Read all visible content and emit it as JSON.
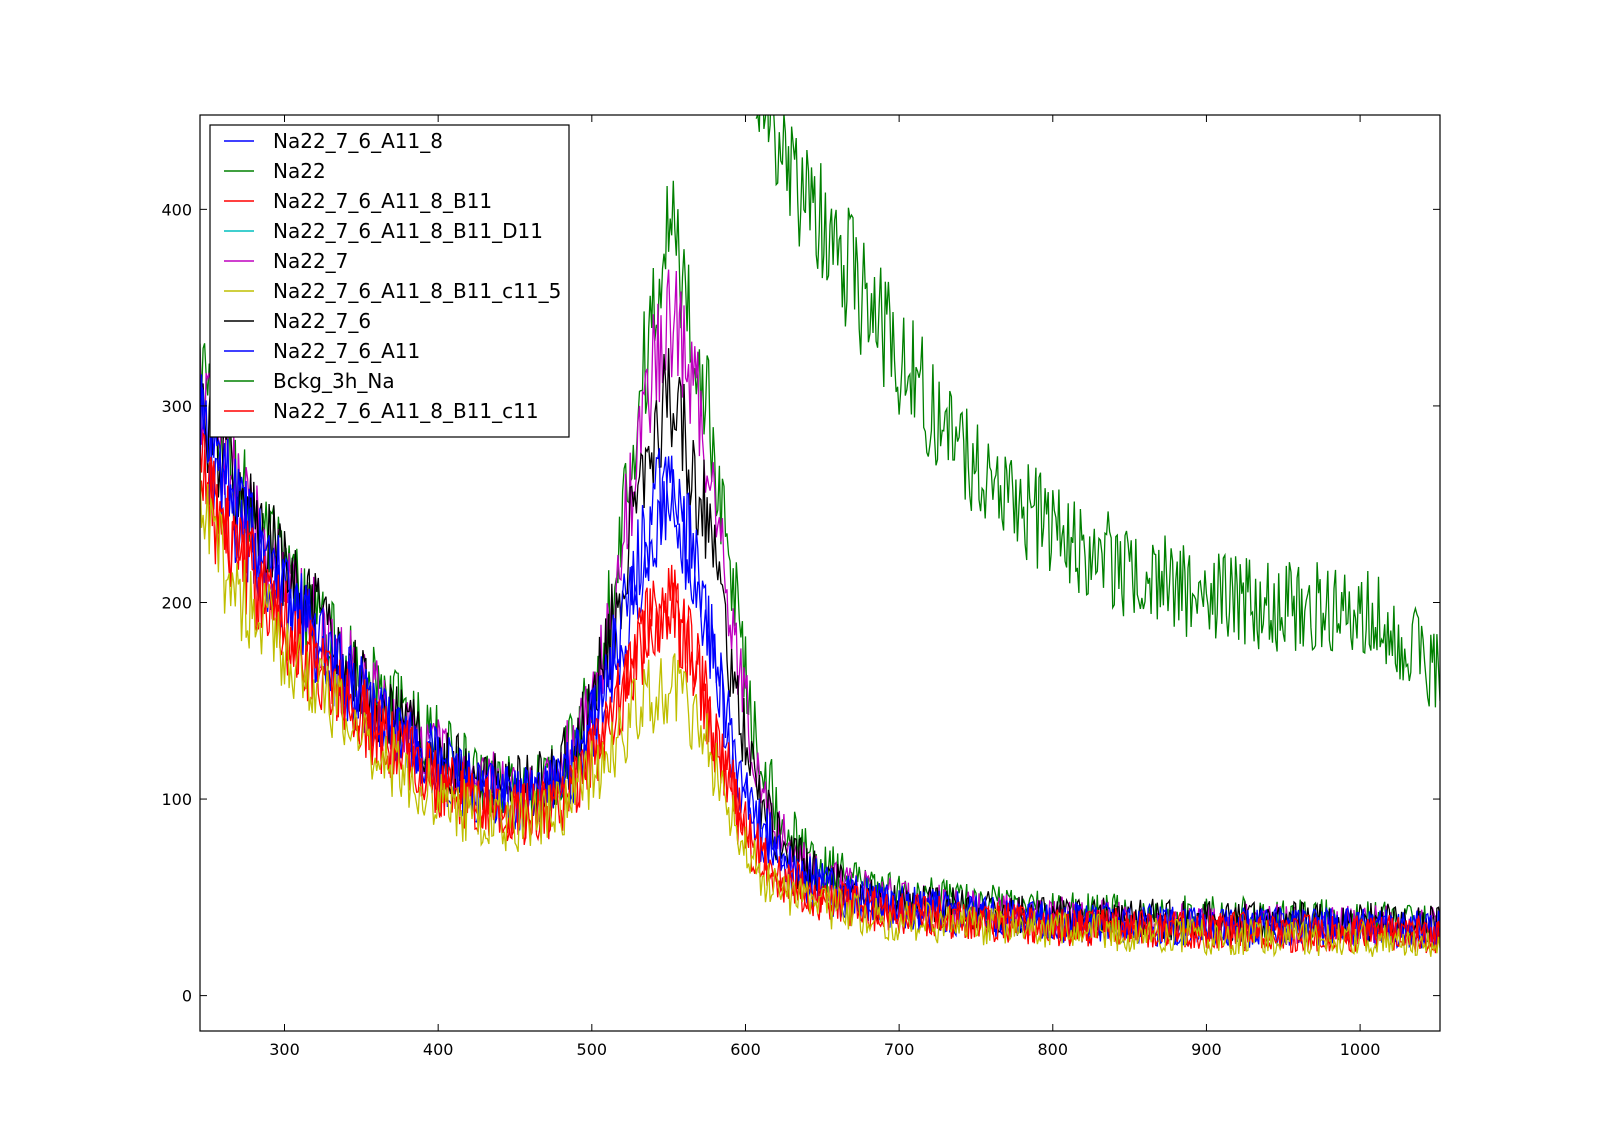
{
  "chart_data": {
    "type": "line",
    "title": "",
    "xlabel": "",
    "ylabel": "",
    "xlim": [
      245,
      1052
    ],
    "ylim": [
      -18,
      448
    ],
    "xticks": [
      300,
      400,
      500,
      600,
      700,
      800,
      900,
      1000
    ],
    "yticks": [
      0,
      100,
      200,
      300,
      400
    ],
    "grid": false,
    "legend_position": "top-left",
    "series": [
      {
        "name": "Na22_7_6_A11_8",
        "color": "#0000ff",
        "points": [
          [
            245,
            290
          ],
          [
            270,
            245
          ],
          [
            300,
            205
          ],
          [
            330,
            170
          ],
          [
            360,
            145
          ],
          [
            400,
            118
          ],
          [
            430,
            103
          ],
          [
            450,
            100
          ],
          [
            470,
            103
          ],
          [
            490,
            118
          ],
          [
            510,
            160
          ],
          [
            530,
            220
          ],
          [
            545,
            255
          ],
          [
            555,
            250
          ],
          [
            565,
            225
          ],
          [
            580,
            170
          ],
          [
            595,
            115
          ],
          [
            610,
            85
          ],
          [
            630,
            65
          ],
          [
            660,
            52
          ],
          [
            700,
            45
          ],
          [
            800,
            38
          ],
          [
            900,
            35
          ],
          [
            1000,
            35
          ],
          [
            1052,
            34
          ]
        ]
      },
      {
        "name": "Na22",
        "color": "#008000",
        "points": [
          [
            245,
            320
          ],
          [
            270,
            260
          ],
          [
            300,
            215
          ],
          [
            330,
            180
          ],
          [
            360,
            155
          ],
          [
            400,
            128
          ],
          [
            430,
            110
          ],
          [
            450,
            105
          ],
          [
            470,
            108
          ],
          [
            490,
            128
          ],
          [
            510,
            190
          ],
          [
            530,
            300
          ],
          [
            545,
            370
          ],
          [
            552,
            390
          ],
          [
            560,
            360
          ],
          [
            575,
            300
          ],
          [
            590,
            220
          ],
          [
            605,
            140
          ],
          [
            620,
            95
          ],
          [
            640,
            70
          ],
          [
            670,
            57
          ],
          [
            700,
            50
          ],
          [
            800,
            42
          ],
          [
            900,
            40
          ],
          [
            1000,
            38
          ],
          [
            1052,
            36
          ]
        ]
      },
      {
        "name": "Na22_7_6_A11_8_B11",
        "color": "#ff0000",
        "points": [
          [
            245,
            265
          ],
          [
            270,
            225
          ],
          [
            300,
            190
          ],
          [
            330,
            160
          ],
          [
            360,
            135
          ],
          [
            400,
            110
          ],
          [
            430,
            97
          ],
          [
            450,
            93
          ],
          [
            470,
            95
          ],
          [
            490,
            108
          ],
          [
            510,
            135
          ],
          [
            530,
            175
          ],
          [
            545,
            200
          ],
          [
            555,
            195
          ],
          [
            565,
            178
          ],
          [
            580,
            135
          ],
          [
            595,
            95
          ],
          [
            610,
            70
          ],
          [
            630,
            57
          ],
          [
            660,
            48
          ],
          [
            700,
            42
          ],
          [
            800,
            36
          ],
          [
            900,
            33
          ],
          [
            1000,
            32
          ],
          [
            1052,
            31
          ]
        ]
      },
      {
        "name": "Na22_7_6_A11_8_B11_D11",
        "color": "#00bfbf",
        "points": []
      },
      {
        "name": "Na22_7",
        "color": "#bf00bf",
        "points": [
          [
            245,
            305
          ],
          [
            270,
            255
          ],
          [
            300,
            215
          ],
          [
            330,
            178
          ],
          [
            360,
            150
          ],
          [
            400,
            122
          ],
          [
            430,
            108
          ],
          [
            450,
            105
          ],
          [
            470,
            110
          ],
          [
            490,
            128
          ],
          [
            510,
            180
          ],
          [
            530,
            280
          ],
          [
            545,
            335
          ],
          [
            552,
            345
          ],
          [
            560,
            330
          ],
          [
            575,
            280
          ],
          [
            590,
            200
          ],
          [
            605,
            125
          ],
          [
            620,
            85
          ],
          [
            640,
            65
          ],
          [
            670,
            53
          ],
          [
            700,
            47
          ],
          [
            800,
            40
          ],
          [
            900,
            37
          ],
          [
            1000,
            36
          ],
          [
            1052,
            35
          ]
        ]
      },
      {
        "name": "Na22_7_6_A11_8_B11_c11_5",
        "color": "#bfbf00",
        "points": [
          [
            245,
            245
          ],
          [
            270,
            205
          ],
          [
            300,
            178
          ],
          [
            330,
            148
          ],
          [
            360,
            125
          ],
          [
            400,
            100
          ],
          [
            430,
            90
          ],
          [
            450,
            88
          ],
          [
            470,
            92
          ],
          [
            490,
            103
          ],
          [
            510,
            122
          ],
          [
            530,
            145
          ],
          [
            545,
            157
          ],
          [
            555,
            155
          ],
          [
            565,
            145
          ],
          [
            580,
            115
          ],
          [
            595,
            80
          ],
          [
            610,
            62
          ],
          [
            630,
            52
          ],
          [
            660,
            44
          ],
          [
            700,
            38
          ],
          [
            800,
            33
          ],
          [
            900,
            30
          ],
          [
            1000,
            29
          ],
          [
            1052,
            28
          ]
        ]
      },
      {
        "name": "Na22_7_6",
        "color": "#000000",
        "points": [
          [
            245,
            300
          ],
          [
            270,
            255
          ],
          [
            300,
            215
          ],
          [
            330,
            180
          ],
          [
            360,
            150
          ],
          [
            400,
            123
          ],
          [
            430,
            108
          ],
          [
            450,
            105
          ],
          [
            470,
            110
          ],
          [
            490,
            128
          ],
          [
            510,
            175
          ],
          [
            530,
            255
          ],
          [
            545,
            298
          ],
          [
            552,
            305
          ],
          [
            560,
            290
          ],
          [
            575,
            240
          ],
          [
            590,
            170
          ],
          [
            605,
            110
          ],
          [
            620,
            80
          ],
          [
            640,
            63
          ],
          [
            670,
            52
          ],
          [
            700,
            46
          ],
          [
            800,
            40
          ],
          [
            900,
            38
          ],
          [
            1000,
            37
          ],
          [
            1052,
            36
          ]
        ]
      },
      {
        "name": "Na22_7_6_A11",
        "color": "#0000ff",
        "points": [
          [
            245,
            285
          ],
          [
            270,
            242
          ],
          [
            300,
            203
          ],
          [
            330,
            168
          ],
          [
            360,
            143
          ],
          [
            400,
            117
          ],
          [
            430,
            102
          ],
          [
            450,
            99
          ],
          [
            470,
            102
          ],
          [
            490,
            117
          ],
          [
            510,
            158
          ],
          [
            530,
            215
          ],
          [
            545,
            250
          ],
          [
            555,
            247
          ],
          [
            565,
            222
          ],
          [
            580,
            168
          ],
          [
            595,
            113
          ],
          [
            610,
            83
          ],
          [
            630,
            64
          ],
          [
            660,
            51
          ],
          [
            700,
            44
          ],
          [
            800,
            37
          ],
          [
            900,
            34
          ],
          [
            1000,
            34
          ],
          [
            1052,
            33
          ]
        ]
      },
      {
        "name": "Bckg_3h_Na",
        "color": "#008000",
        "points": [
          [
            607,
            470
          ],
          [
            620,
            430
          ],
          [
            640,
            400
          ],
          [
            660,
            380
          ],
          [
            680,
            350
          ],
          [
            700,
            325
          ],
          [
            720,
            300
          ],
          [
            740,
            280
          ],
          [
            760,
            262
          ],
          [
            780,
            248
          ],
          [
            800,
            238
          ],
          [
            820,
            228
          ],
          [
            840,
            220
          ],
          [
            860,
            213
          ],
          [
            880,
            208
          ],
          [
            900,
            203
          ],
          [
            920,
            201
          ],
          [
            940,
            199
          ],
          [
            960,
            198
          ],
          [
            980,
            197
          ],
          [
            1000,
            195
          ],
          [
            1020,
            188
          ],
          [
            1040,
            172
          ],
          [
            1052,
            162
          ]
        ]
      },
      {
        "name": "Na22_7_6_A11_8_B11_c11",
        "color": "#ff0000",
        "points": [
          [
            245,
            262
          ],
          [
            270,
            222
          ],
          [
            300,
            187
          ],
          [
            330,
            157
          ],
          [
            360,
            133
          ],
          [
            400,
            108
          ],
          [
            430,
            96
          ],
          [
            450,
            92
          ],
          [
            470,
            94
          ],
          [
            490,
            106
          ],
          [
            510,
            133
          ],
          [
            530,
            172
          ],
          [
            545,
            197
          ],
          [
            555,
            192
          ],
          [
            565,
            175
          ],
          [
            580,
            132
          ],
          [
            595,
            93
          ],
          [
            610,
            68
          ],
          [
            630,
            55
          ],
          [
            660,
            47
          ],
          [
            700,
            41
          ],
          [
            800,
            35
          ],
          [
            900,
            32
          ],
          [
            1000,
            31
          ],
          [
            1052,
            30
          ]
        ]
      }
    ]
  }
}
